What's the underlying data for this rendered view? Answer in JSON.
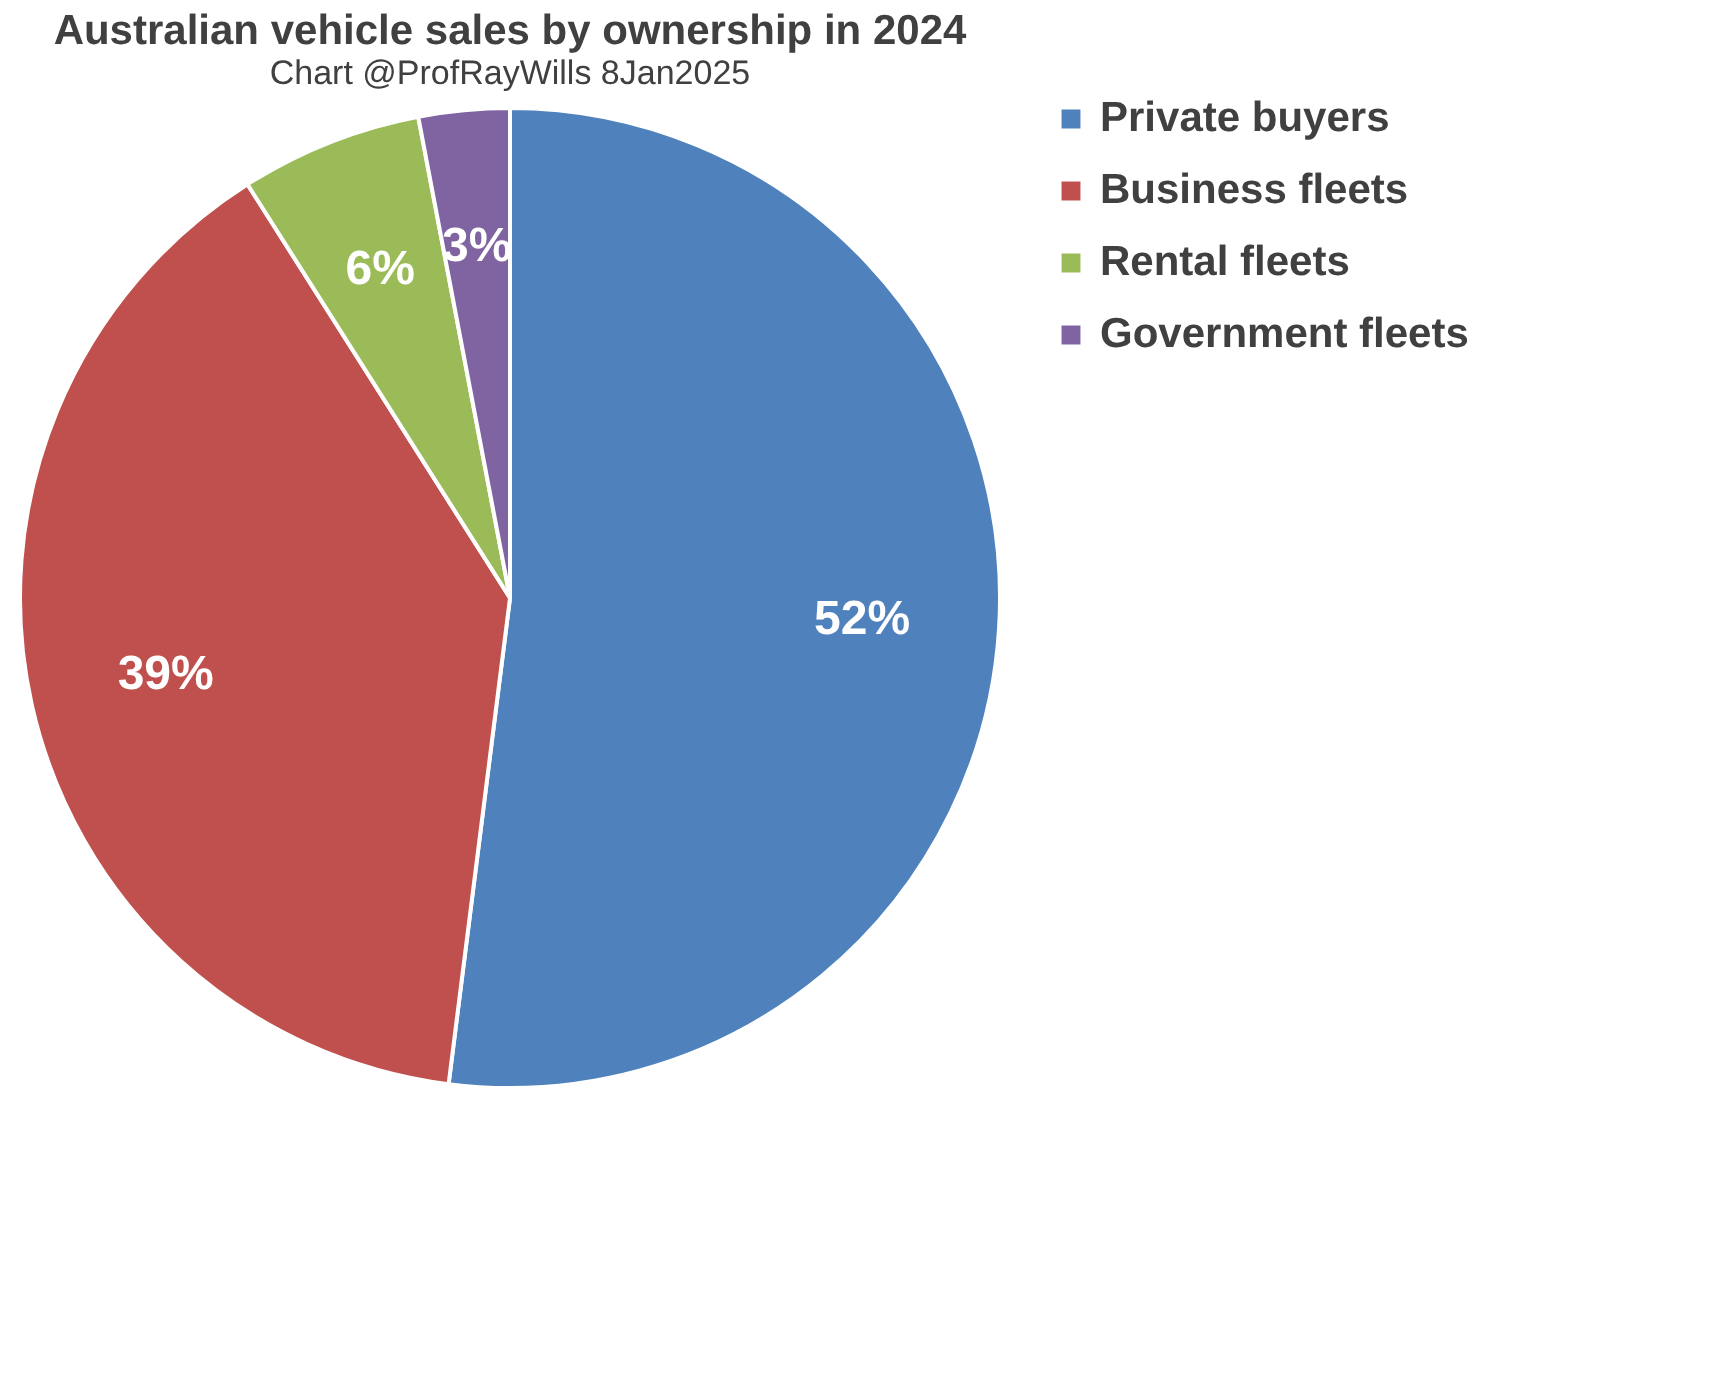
{
  "chart_data": {
    "type": "pie",
    "title": "Australian vehicle sales by ownership in 2024",
    "subtitle": "Chart @ProfRayWills 8Jan2025",
    "categories": [
      "Private buyers",
      "Business fleets",
      "Rental fleets",
      "Government fleets"
    ],
    "values": [
      52,
      39,
      6,
      3
    ],
    "colors": [
      "#4f81bd",
      "#c0504d",
      "#9bbb59",
      "#8064a2"
    ],
    "value_labels": [
      "52%",
      "39%",
      "6%",
      "3%"
    ],
    "legend": "right"
  }
}
